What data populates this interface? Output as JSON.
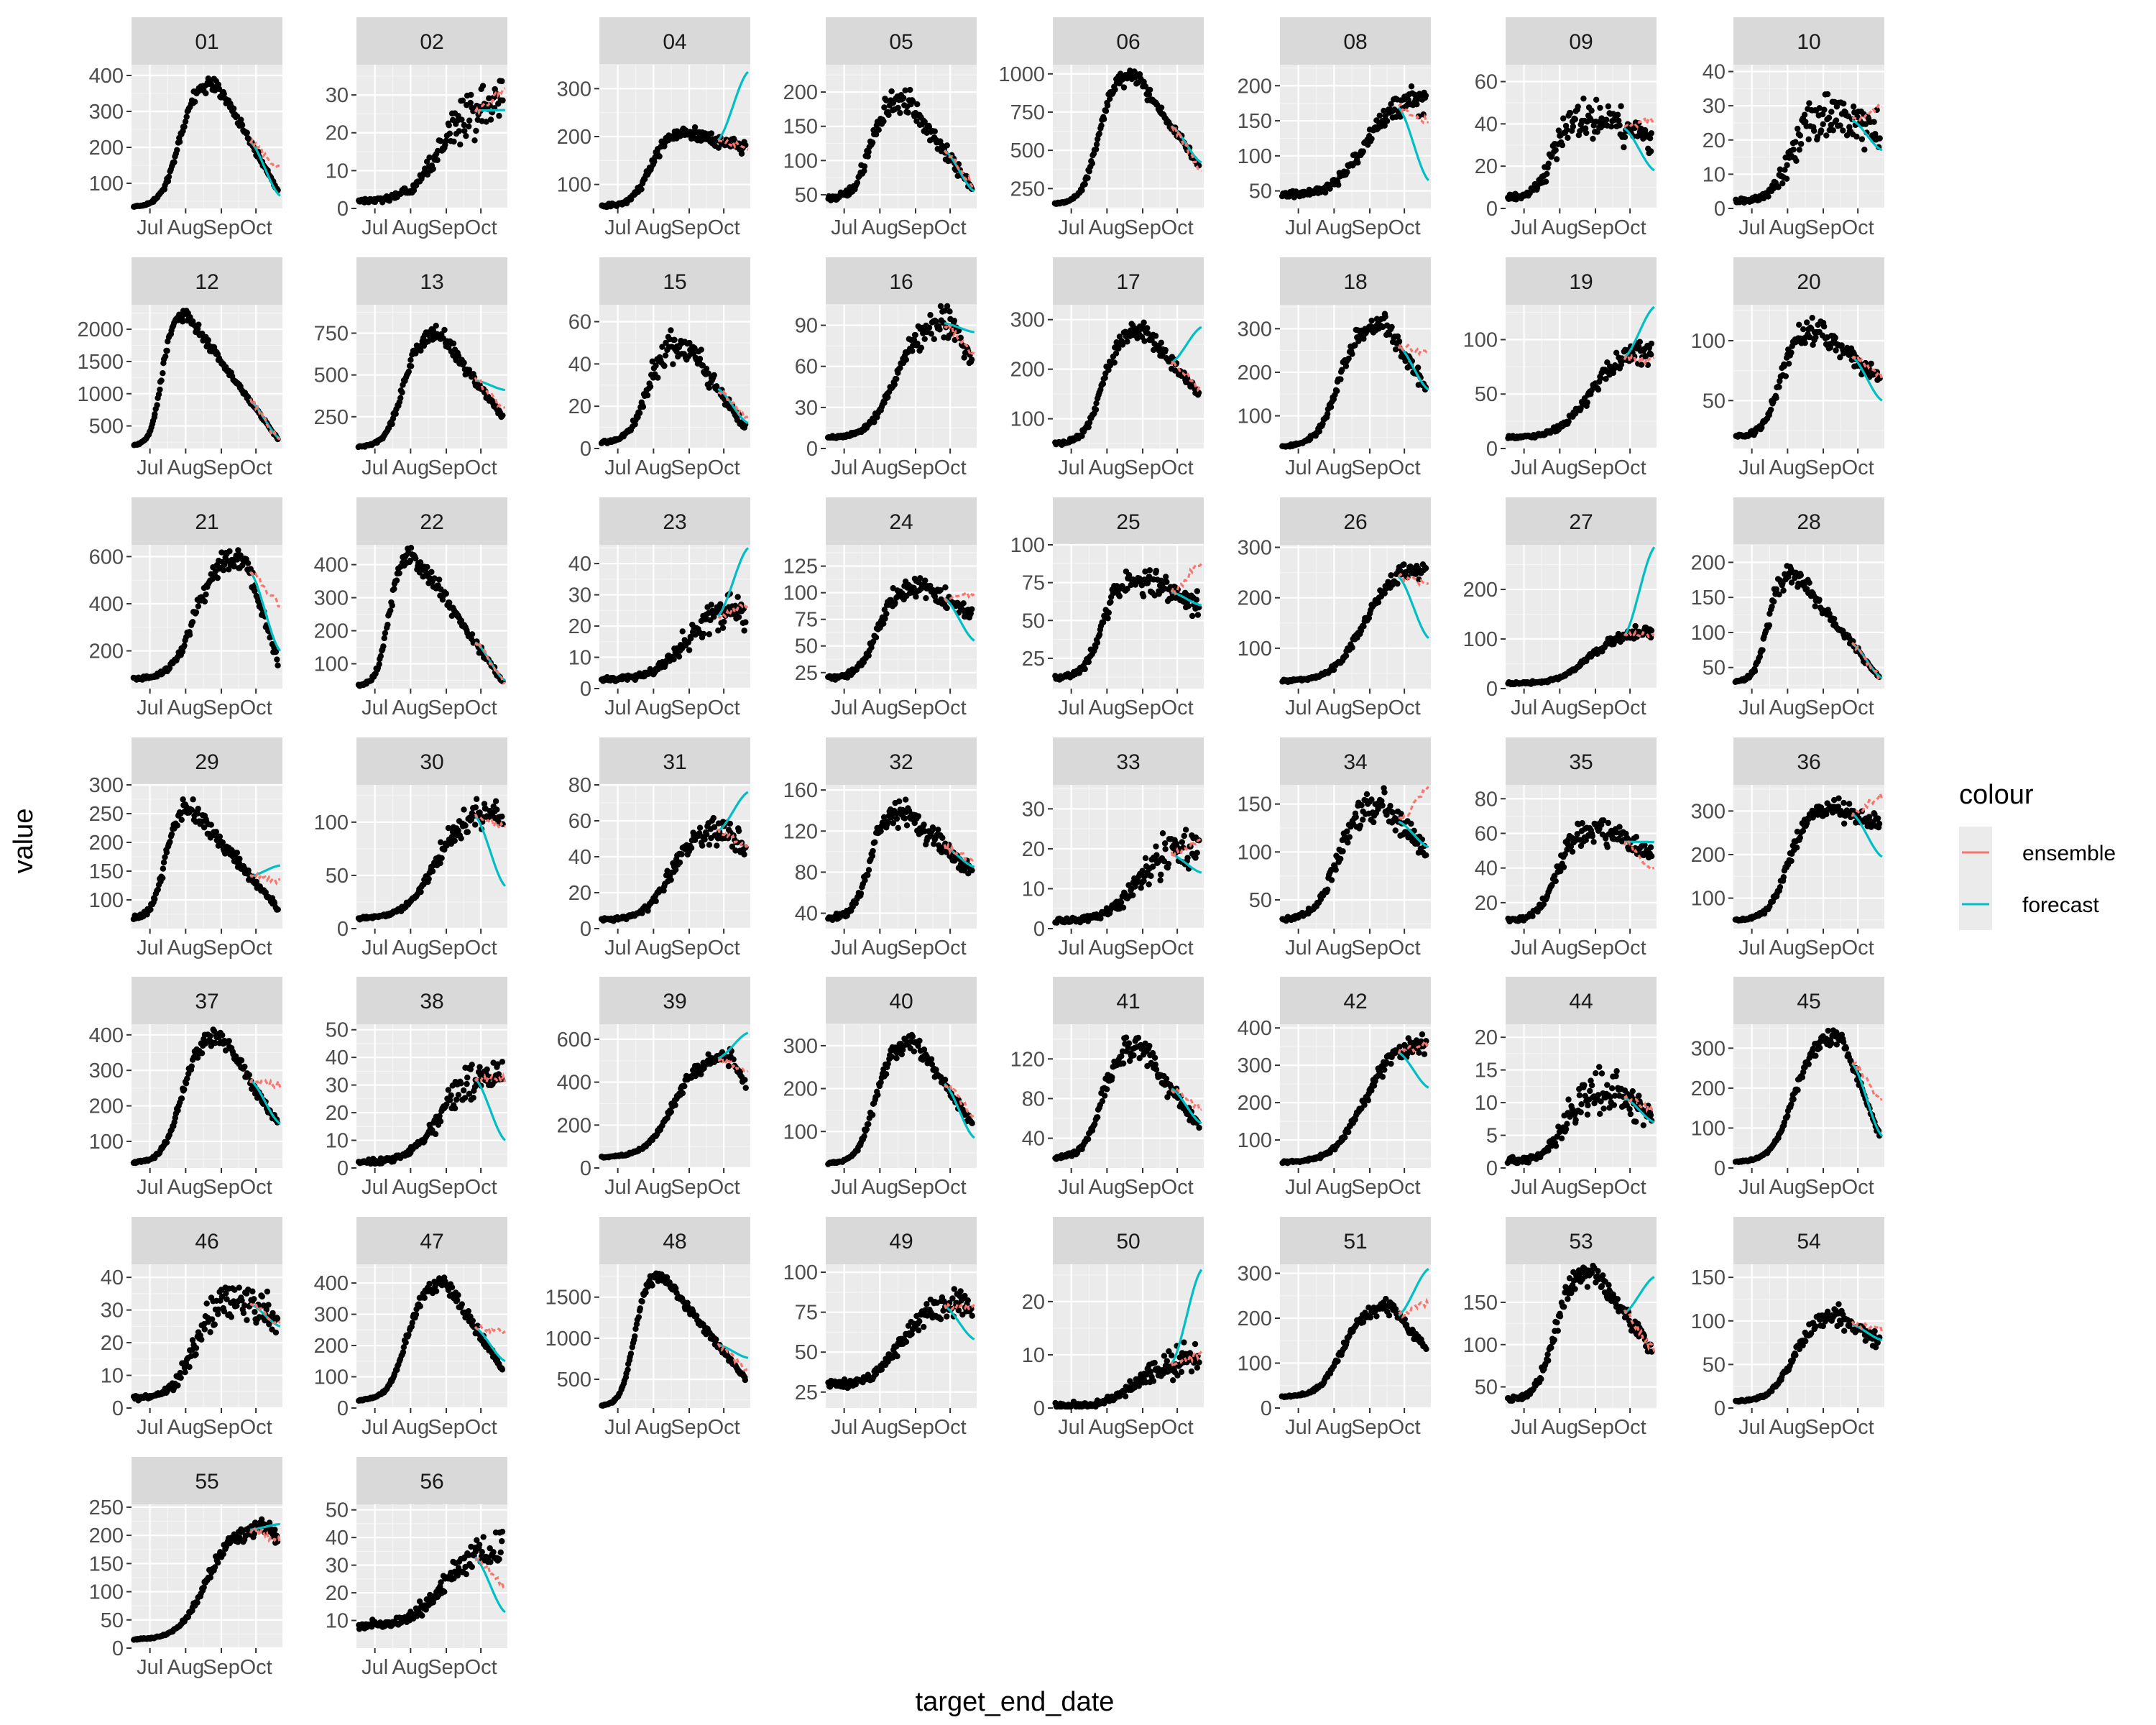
{
  "chart_data": {
    "type": "scatter",
    "xlabel": "target_end_date",
    "ylabel": "value",
    "x_ticks": [
      "Jul",
      "Aug",
      "Sep",
      "Oct"
    ],
    "grid": true,
    "legend": {
      "title": "colour",
      "placement": "right",
      "entries": [
        {
          "name": "ensemble",
          "color": "#F8766D"
        },
        {
          "name": "forecast",
          "color": "#00BFC4"
        }
      ]
    },
    "x_domain": [
      "2020-06-15",
      "2020-10-24"
    ],
    "forecast_start": "2020-09-26",
    "colors": {
      "ensemble": "#F8766D",
      "forecast": "#00BFC4",
      "observed": "#000000"
    },
    "panels": [
      {
        "id": "01",
        "ylim": [
          30,
          430
        ],
        "yticks": [
          100,
          200,
          300,
          400
        ],
        "peak_date": "2020-08-28",
        "base": 35,
        "peak": 380,
        "end": 80,
        "noise": 0.06,
        "forecast_end": 65,
        "ensemble_end": 140
      },
      {
        "id": "02",
        "ylim": [
          0,
          38
        ],
        "yticks": [
          0,
          10,
          20,
          30
        ],
        "peak_date": "2020-10-25",
        "base": 2,
        "peak": 28,
        "end": 28,
        "noise": 0.25,
        "forecast_end": 26,
        "ensemble_end": 31
      },
      {
        "id": "04",
        "ylim": [
          50,
          350
        ],
        "yticks": [
          100,
          200,
          300
        ],
        "peak_date": "2020-09-02",
        "base": 55,
        "peak": 210,
        "end": 175,
        "noise": 0.08,
        "forecast_end": 335,
        "ensemble_end": 180
      },
      {
        "id": "05",
        "ylim": [
          30,
          240
        ],
        "yticks": [
          50,
          100,
          150,
          200
        ],
        "peak_date": "2020-08-24",
        "base": 45,
        "peak": 190,
        "end": 60,
        "noise": 0.12,
        "forecast_end": 55,
        "ensemble_end": 65
      },
      {
        "id": "06",
        "ylim": [
          120,
          1060
        ],
        "yticks": [
          250,
          500,
          750,
          1000
        ],
        "peak_date": "2020-08-25",
        "base": 150,
        "peak": 1000,
        "end": 400,
        "noise": 0.05,
        "forecast_end": 420,
        "ensemble_end": 380
      },
      {
        "id": "08",
        "ylim": [
          25,
          230
        ],
        "yticks": [
          50,
          100,
          150,
          200
        ],
        "peak_date": "2020-10-25",
        "base": 45,
        "peak": 180,
        "end": 180,
        "noise": 0.12,
        "forecast_end": 65,
        "ensemble_end": 150
      },
      {
        "id": "09",
        "ylim": [
          0,
          68
        ],
        "yticks": [
          0,
          20,
          40,
          60
        ],
        "peak_date": "2020-08-28",
        "base": 5,
        "peak": 45,
        "end": 32,
        "noise": 0.22,
        "forecast_end": 18,
        "ensemble_end": 42
      },
      {
        "id": "10",
        "ylim": [
          0,
          42
        ],
        "yticks": [
          0,
          10,
          20,
          30,
          40
        ],
        "peak_date": "2020-09-12",
        "base": 2,
        "peak": 28,
        "end": 22,
        "noise": 0.28,
        "forecast_end": 17,
        "ensemble_end": 30
      },
      {
        "id": "12",
        "ylim": [
          150,
          2380
        ],
        "yticks": [
          500,
          1000,
          1500,
          2000
        ],
        "peak_date": "2020-08-01",
        "base": 200,
        "peak": 2250,
        "end": 300,
        "noise": 0.04,
        "forecast_end": 300,
        "ensemble_end": 290
      },
      {
        "id": "13",
        "ylim": [
          60,
          920
        ],
        "yticks": [
          250,
          500,
          750
        ],
        "peak_date": "2020-08-26",
        "base": 70,
        "peak": 750,
        "end": 250,
        "noise": 0.07,
        "forecast_end": 410,
        "ensemble_end": 300
      },
      {
        "id": "15",
        "ylim": [
          0,
          68
        ],
        "yticks": [
          0,
          20,
          40,
          60
        ],
        "peak_date": "2020-08-28",
        "base": 3,
        "peak": 50,
        "end": 10,
        "noise": 0.18,
        "forecast_end": 12,
        "ensemble_end": 14
      },
      {
        "id": "16",
        "ylim": [
          0,
          105
        ],
        "yticks": [
          0,
          30,
          60,
          90
        ],
        "peak_date": "2020-10-01",
        "base": 8,
        "peak": 92,
        "end": 65,
        "noise": 0.12,
        "forecast_end": 85,
        "ensemble_end": 68
      },
      {
        "id": "17",
        "ylim": [
          40,
          330
        ],
        "yticks": [
          100,
          200,
          300
        ],
        "peak_date": "2020-09-01",
        "base": 50,
        "peak": 280,
        "end": 150,
        "noise": 0.08,
        "forecast_end": 285,
        "ensemble_end": 160
      },
      {
        "id": "18",
        "ylim": [
          25,
          355
        ],
        "yticks": [
          100,
          200,
          300
        ],
        "peak_date": "2020-09-14",
        "base": 30,
        "peak": 310,
        "end": 160,
        "noise": 0.08,
        "forecast_end": 160,
        "ensemble_end": 240
      },
      {
        "id": "19",
        "ylim": [
          0,
          132
        ],
        "yticks": [
          0,
          50,
          100
        ],
        "peak_date": "2020-10-25",
        "base": 10,
        "peak": 90,
        "end": 90,
        "noise": 0.14,
        "forecast_end": 130,
        "ensemble_end": 80
      },
      {
        "id": "20",
        "ylim": [
          10,
          130
        ],
        "yticks": [
          50,
          100
        ],
        "peak_date": "2020-08-26",
        "base": 20,
        "peak": 108,
        "end": 70,
        "noise": 0.1,
        "forecast_end": 50,
        "ensemble_end": 70
      },
      {
        "id": "21",
        "ylim": [
          40,
          650
        ],
        "yticks": [
          200,
          400,
          600
        ],
        "peak_date": "2020-09-22",
        "base": 80,
        "peak": 600,
        "end": 150,
        "noise": 0.1,
        "forecast_end": 200,
        "ensemble_end": 400
      },
      {
        "id": "22",
        "ylim": [
          25,
          460
        ],
        "yticks": [
          100,
          200,
          300,
          400
        ],
        "peak_date": "2020-08-04",
        "base": 35,
        "peak": 430,
        "end": 45,
        "noise": 0.08,
        "forecast_end": 50,
        "ensemble_end": 48
      },
      {
        "id": "23",
        "ylim": [
          0,
          46
        ],
        "yticks": [
          0,
          10,
          20,
          30,
          40
        ],
        "peak_date": "2020-10-25",
        "base": 3,
        "peak": 25,
        "end": 25,
        "noise": 0.25,
        "forecast_end": 45,
        "ensemble_end": 27
      },
      {
        "id": "24",
        "ylim": [
          10,
          145
        ],
        "yticks": [
          25,
          50,
          75,
          100,
          125
        ],
        "peak_date": "2020-09-05",
        "base": 20,
        "peak": 108,
        "end": 80,
        "noise": 0.1,
        "forecast_end": 55,
        "ensemble_end": 100
      },
      {
        "id": "25",
        "ylim": [
          5,
          100
        ],
        "yticks": [
          25,
          50,
          75,
          100
        ],
        "peak_date": "2020-08-31",
        "base": 12,
        "peak": 78,
        "end": 60,
        "noise": 0.12,
        "forecast_end": 60,
        "ensemble_end": 88
      },
      {
        "id": "26",
        "ylim": [
          20,
          305
        ],
        "yticks": [
          100,
          200,
          300
        ],
        "peak_date": "2020-10-25",
        "base": 35,
        "peak": 260,
        "end": 260,
        "noise": 0.08,
        "forecast_end": 120,
        "ensemble_end": 230
      },
      {
        "id": "27",
        "ylim": [
          0,
          290
        ],
        "yticks": [
          0,
          100,
          200
        ],
        "peak_date": "2020-10-25",
        "base": 10,
        "peak": 115,
        "end": 115,
        "noise": 0.12,
        "forecast_end": 285,
        "ensemble_end": 110
      },
      {
        "id": "28",
        "ylim": [
          20,
          225
        ],
        "yticks": [
          50,
          100,
          150,
          200
        ],
        "peak_date": "2020-08-07",
        "base": 30,
        "peak": 185,
        "end": 35,
        "noise": 0.08,
        "forecast_end": 35,
        "ensemble_end": 35
      },
      {
        "id": "29",
        "ylim": [
          50,
          300
        ],
        "yticks": [
          100,
          150,
          200,
          250,
          300
        ],
        "peak_date": "2020-08-06",
        "base": 70,
        "peak": 260,
        "end": 85,
        "noise": 0.07,
        "forecast_end": 160,
        "ensemble_end": 135
      },
      {
        "id": "30",
        "ylim": [
          0,
          135
        ],
        "yticks": [
          0,
          50,
          100
        ],
        "peak_date": "2020-10-15",
        "base": 10,
        "peak": 110,
        "end": 100,
        "noise": 0.12,
        "forecast_end": 40,
        "ensemble_end": 95
      },
      {
        "id": "31",
        "ylim": [
          0,
          80
        ],
        "yticks": [
          0,
          20,
          40,
          60,
          80
        ],
        "peak_date": "2020-10-05",
        "base": 5,
        "peak": 55,
        "end": 45,
        "noise": 0.15,
        "forecast_end": 76,
        "ensemble_end": 45
      },
      {
        "id": "32",
        "ylim": [
          25,
          165
        ],
        "yticks": [
          40,
          80,
          120,
          160
        ],
        "peak_date": "2020-08-22",
        "base": 35,
        "peak": 140,
        "end": 80,
        "noise": 0.09,
        "forecast_end": 85,
        "ensemble_end": 90
      },
      {
        "id": "33",
        "ylim": [
          0,
          36
        ],
        "yticks": [
          0,
          10,
          20,
          30
        ],
        "peak_date": "2020-10-25",
        "base": 2,
        "peak": 20,
        "end": 20,
        "noise": 0.28,
        "forecast_end": 14,
        "ensemble_end": 22
      },
      {
        "id": "34",
        "ylim": [
          20,
          170
        ],
        "yticks": [
          50,
          100,
          150
        ],
        "peak_date": "2020-09-12",
        "base": 30,
        "peak": 150,
        "end": 100,
        "noise": 0.1,
        "forecast_end": 105,
        "ensemble_end": 165
      },
      {
        "id": "35",
        "ylim": [
          5,
          88
        ],
        "yticks": [
          20,
          40,
          60,
          80
        ],
        "peak_date": "2020-09-03",
        "base": 10,
        "peak": 62,
        "end": 48,
        "noise": 0.15,
        "forecast_end": 55,
        "ensemble_end": 38
      },
      {
        "id": "36",
        "ylim": [
          30,
          360
        ],
        "yticks": [
          100,
          200,
          300
        ],
        "peak_date": "2020-09-10",
        "base": 50,
        "peak": 310,
        "end": 270,
        "noise": 0.08,
        "forecast_end": 195,
        "ensemble_end": 335
      },
      {
        "id": "37",
        "ylim": [
          25,
          430
        ],
        "yticks": [
          100,
          200,
          300,
          400
        ],
        "peak_date": "2020-09-01",
        "base": 40,
        "peak": 400,
        "end": 150,
        "noise": 0.07,
        "forecast_end": 150,
        "ensemble_end": 260
      },
      {
        "id": "38",
        "ylim": [
          0,
          52
        ],
        "yticks": [
          0,
          10,
          20,
          30,
          40,
          50
        ],
        "peak_date": "2020-10-25",
        "base": 2,
        "peak": 35,
        "end": 35,
        "noise": 0.25,
        "forecast_end": 10,
        "ensemble_end": 32
      },
      {
        "id": "39",
        "ylim": [
          0,
          670
        ],
        "yticks": [
          0,
          200,
          400,
          600
        ],
        "peak_date": "2020-10-08",
        "base": 50,
        "peak": 520,
        "end": 380,
        "noise": 0.07,
        "forecast_end": 630,
        "ensemble_end": 460
      },
      {
        "id": "40",
        "ylim": [
          15,
          350
        ],
        "yticks": [
          100,
          200,
          300
        ],
        "peak_date": "2020-08-31",
        "base": 25,
        "peak": 310,
        "end": 120,
        "noise": 0.08,
        "forecast_end": 85,
        "ensemble_end": 140
      },
      {
        "id": "41",
        "ylim": [
          10,
          155
        ],
        "yticks": [
          40,
          80,
          120
        ],
        "peak_date": "2020-08-30",
        "base": 20,
        "peak": 135,
        "end": 50,
        "noise": 0.12,
        "forecast_end": 55,
        "ensemble_end": 70
      },
      {
        "id": "42",
        "ylim": [
          25,
          410
        ],
        "yticks": [
          100,
          200,
          300,
          400
        ],
        "peak_date": "2020-10-25",
        "base": 40,
        "peak": 360,
        "end": 360,
        "noise": 0.08,
        "forecast_end": 240,
        "ensemble_end": 360
      },
      {
        "id": "44",
        "ylim": [
          0,
          22
        ],
        "yticks": [
          0,
          5,
          10,
          15,
          20
        ],
        "peak_date": "2020-09-15",
        "base": 1,
        "peak": 12,
        "end": 8,
        "noise": 0.3,
        "forecast_end": 7,
        "ensemble_end": 9
      },
      {
        "id": "45",
        "ylim": [
          0,
          360
        ],
        "yticks": [
          0,
          100,
          200,
          300
        ],
        "peak_date": "2020-09-17",
        "base": 15,
        "peak": 330,
        "end": 80,
        "noise": 0.06,
        "forecast_end": 80,
        "ensemble_end": 170
      },
      {
        "id": "46",
        "ylim": [
          0,
          44
        ],
        "yticks": [
          0,
          10,
          20,
          30,
          40
        ],
        "peak_date": "2020-09-20",
        "base": 3,
        "peak": 33,
        "end": 27,
        "noise": 0.22,
        "forecast_end": 25,
        "ensemble_end": 26
      },
      {
        "id": "47",
        "ylim": [
          0,
          460
        ],
        "yticks": [
          0,
          100,
          200,
          300,
          400
        ],
        "peak_date": "2020-09-01",
        "base": 25,
        "peak": 400,
        "end": 120,
        "noise": 0.07,
        "forecast_end": 150,
        "ensemble_end": 240
      },
      {
        "id": "48",
        "ylim": [
          150,
          1900
        ],
        "yticks": [
          500,
          1000,
          1500
        ],
        "peak_date": "2020-08-08",
        "base": 180,
        "peak": 1780,
        "end": 500,
        "noise": 0.05,
        "forecast_end": 760,
        "ensemble_end": 600
      },
      {
        "id": "49",
        "ylim": [
          15,
          105
        ],
        "yticks": [
          25,
          50,
          75,
          100
        ],
        "peak_date": "2020-10-10",
        "base": 30,
        "peak": 80,
        "end": 75,
        "noise": 0.1,
        "forecast_end": 58,
        "ensemble_end": 78
      },
      {
        "id": "50",
        "ylim": [
          0,
          27
        ],
        "yticks": [
          0,
          10,
          20
        ],
        "peak_date": "2020-10-25",
        "base": 0.3,
        "peak": 9,
        "end": 9,
        "noise": 0.35,
        "forecast_end": 26,
        "ensemble_end": 10
      },
      {
        "id": "51",
        "ylim": [
          0,
          320
        ],
        "yticks": [
          0,
          100,
          200,
          300
        ],
        "peak_date": "2020-09-20",
        "base": 25,
        "peak": 225,
        "end": 130,
        "noise": 0.08,
        "forecast_end": 310,
        "ensemble_end": 235
      },
      {
        "id": "53",
        "ylim": [
          25,
          195
        ],
        "yticks": [
          50,
          100,
          150
        ],
        "peak_date": "2020-08-30",
        "base": 35,
        "peak": 185,
        "end": 95,
        "noise": 0.08,
        "forecast_end": 180,
        "ensemble_end": 95
      },
      {
        "id": "54",
        "ylim": [
          0,
          165
        ],
        "yticks": [
          0,
          50,
          100,
          150
        ],
        "peak_date": "2020-09-15",
        "base": 8,
        "peak": 105,
        "end": 75,
        "noise": 0.12,
        "forecast_end": 78,
        "ensemble_end": 90
      },
      {
        "id": "55",
        "ylim": [
          0,
          255
        ],
        "yticks": [
          0,
          50,
          100,
          150,
          200,
          250
        ],
        "peak_date": "2020-10-10",
        "base": 15,
        "peak": 215,
        "end": 190,
        "noise": 0.07,
        "forecast_end": 220,
        "ensemble_end": 190
      },
      {
        "id": "56",
        "ylim": [
          0,
          52
        ],
        "yticks": [
          10,
          20,
          30,
          40,
          50
        ],
        "peak_date": "2020-10-25",
        "base": 8,
        "peak": 35,
        "end": 35,
        "noise": 0.2,
        "forecast_end": 13,
        "ensemble_end": 23
      }
    ]
  }
}
